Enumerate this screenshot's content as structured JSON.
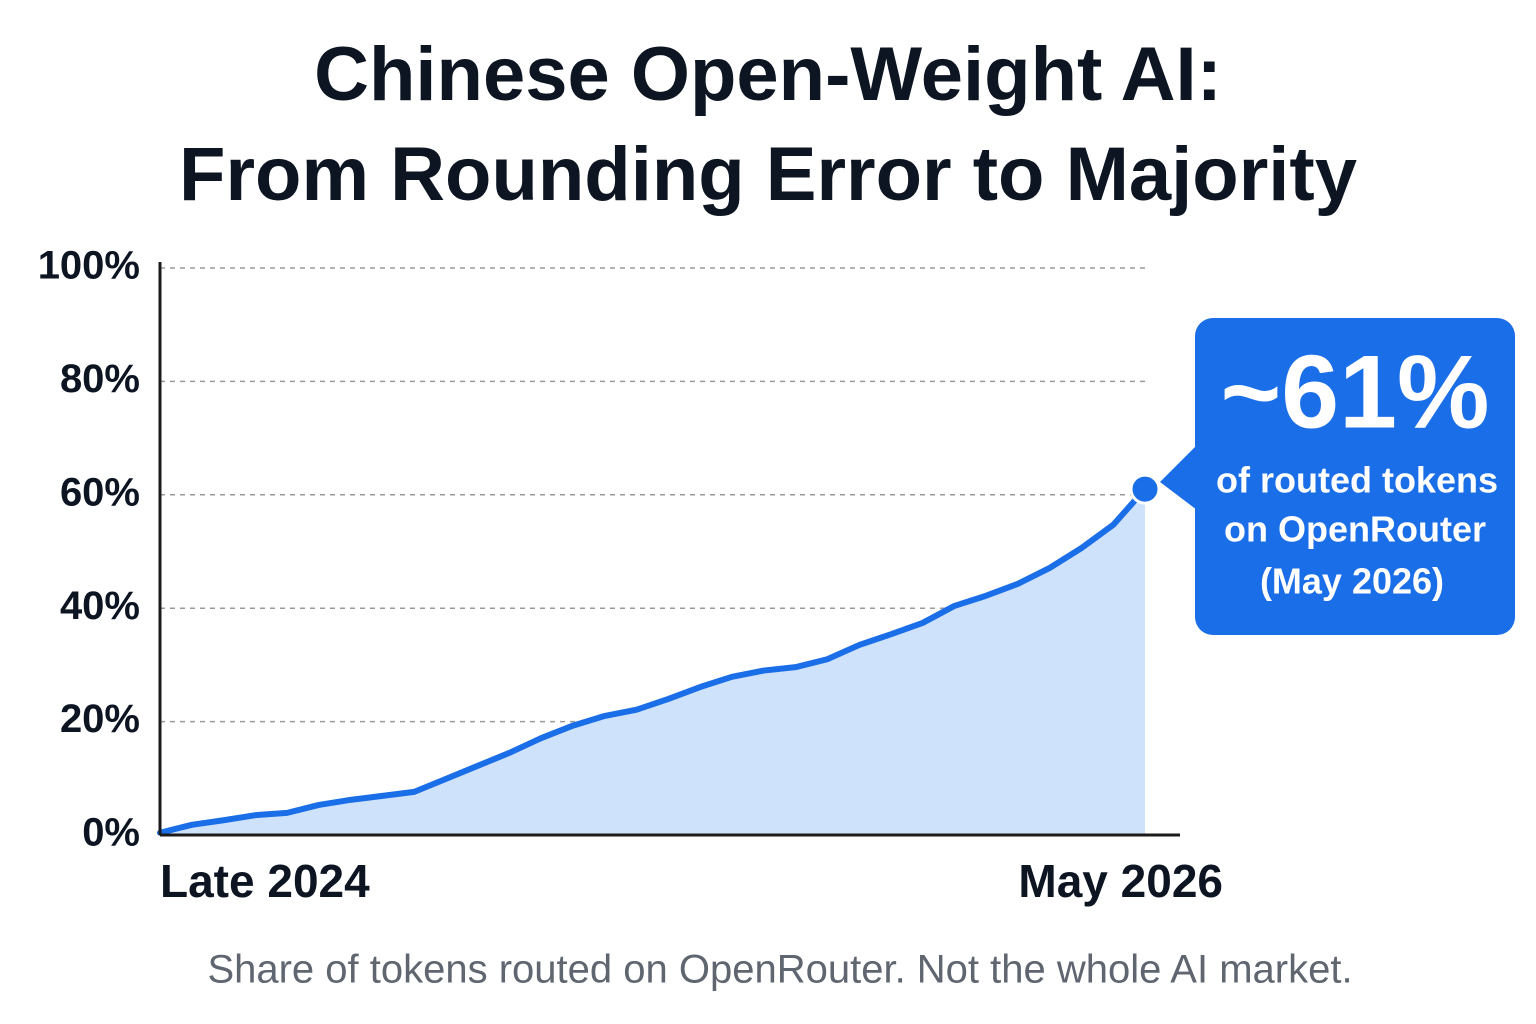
{
  "chart_data": {
    "type": "area",
    "title": [
      "Chinese Open-Weight AI:",
      "From Rounding Error to Majority"
    ],
    "categories": [
      "Late 2024",
      null,
      null,
      null,
      null,
      null,
      null,
      null,
      null,
      null,
      null,
      null,
      null,
      null,
      null,
      null,
      null,
      null,
      null,
      null,
      null,
      null,
      null,
      null,
      null,
      null,
      null,
      null,
      null,
      null,
      null,
      "May 2026"
    ],
    "series": [
      {
        "color": "#1a6ee8",
        "fill": "#cfe2fc",
        "values": [
          0.4,
          1.8,
          2.6,
          3.5,
          3.9,
          5.3,
          6.2,
          6.9,
          7.6,
          9.9,
          12.2,
          14.5,
          17.1,
          19.3,
          21.0,
          22.1,
          24.0,
          26.1,
          27.9,
          29.0,
          29.6,
          31.0,
          33.5,
          35.4,
          37.4,
          40.4,
          42.2,
          44.3,
          47.1,
          50.6,
          54.7,
          61
        ]
      }
    ],
    "ylim": [
      0,
      100
    ],
    "yticks": [
      {
        "value": 0,
        "label": "0%"
      },
      {
        "value": 20,
        "label": "20%"
      },
      {
        "value": 40,
        "label": "40%"
      },
      {
        "value": 60,
        "label": "60%"
      },
      {
        "value": 80,
        "label": "80%"
      },
      {
        "value": 100,
        "label": "100%"
      }
    ],
    "grid": true,
    "annotation": {
      "headline": "~61%",
      "lines": [
        "of routed tokens",
        "on OpenRouter",
        "(May 2026)"
      ]
    },
    "note": "Share of tokens routed on OpenRouter. Not the whole AI market."
  }
}
